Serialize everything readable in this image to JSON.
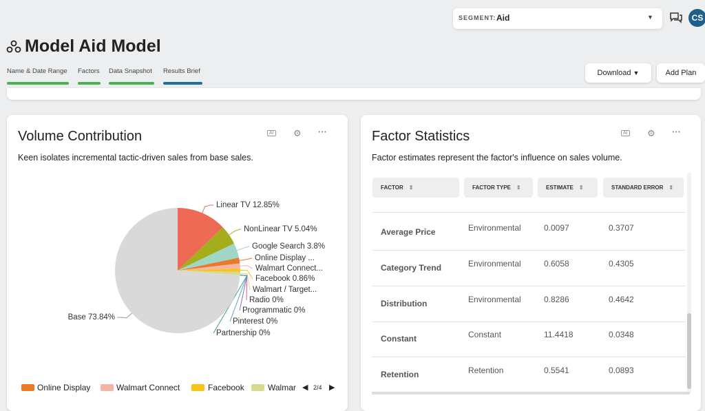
{
  "header": {
    "segment_label": "SEGMENT:",
    "segment_value": "Aid",
    "avatar": "CS",
    "title": "Model Aid Model",
    "tabs": [
      "Name & Date Range",
      "Factors",
      "Data Snapshot",
      "Results Brief"
    ],
    "buttons": [
      "Download",
      "Add Plan"
    ]
  },
  "chart_data": {
    "type": "pie",
    "title": "Volume Contribution",
    "subtitle": "Keen isolates incremental tactic-driven sales from base sales.",
    "categories": [
      "Linear TV 12.85%",
      "NonLinear TV 5.04%",
      "Google Search 3.8%",
      "Online Display ...",
      "Walmart Connect...",
      "Facebook 0.86%",
      "Walmart / Target...",
      "Radio 0%",
      "Programmatic 0%",
      "Pinterest 0%",
      "Partnership 0%",
      "Base 73.84%"
    ],
    "values": [
      12.85,
      5.04,
      3.8,
      1.5,
      1.3,
      0.86,
      0.81,
      0,
      0,
      0,
      0,
      73.84
    ],
    "colors": [
      "#ee6a55",
      "#a6ad1c",
      "#9fd6c6",
      "#e87a2a",
      "#f5b5a5",
      "#f7c318",
      "#d6da8c",
      "#e05a8a",
      "#8e6bbf",
      "#5aa0d0",
      "#3aa08a",
      "#d9d9d9"
    ],
    "legend_items": [
      {
        "label": "Online Display",
        "color": "#e87a2a"
      },
      {
        "label": "Walmart Connect",
        "color": "#f5b5a5"
      },
      {
        "label": "Facebook",
        "color": "#f7c318"
      },
      {
        "label": "Walmar",
        "color": "#d6da8c"
      }
    ],
    "legend_page": "2/4"
  },
  "factor_panel": {
    "title": "Factor Statistics",
    "subtitle": "Factor estimates represent the factor's influence on sales volume.",
    "table": {
      "columns": [
        "FACTOR",
        "FACTOR TYPE",
        "ESTIMATE",
        "STANDARD ERROR"
      ],
      "rows": [
        [
          "Average Price",
          "Environmental",
          "0.0097",
          "0.3707"
        ],
        [
          "Category Trend",
          "Environmental",
          "0.6058",
          "0.4305"
        ],
        [
          "Distribution",
          "Environmental",
          "0.8286",
          "0.4642"
        ],
        [
          "Constant",
          "Constant",
          "11.4418",
          "0.0348"
        ],
        [
          "Retention",
          "Retention",
          "0.5541",
          "0.0893"
        ]
      ]
    }
  }
}
